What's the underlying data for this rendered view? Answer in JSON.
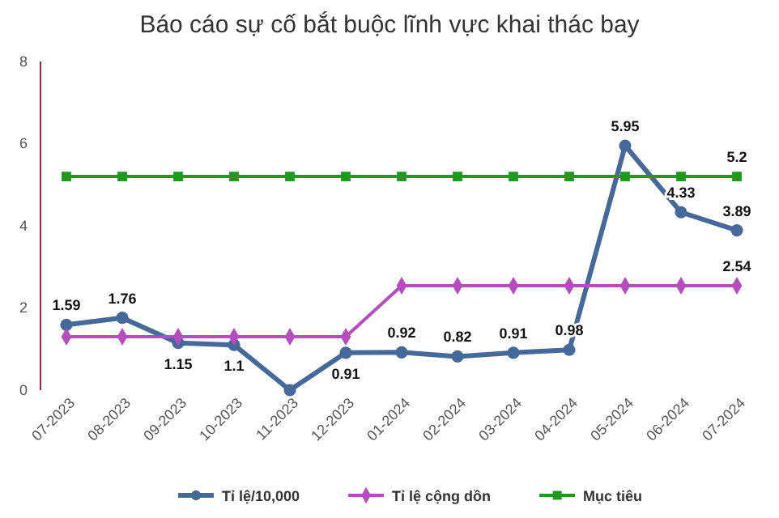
{
  "chart_data": {
    "type": "line",
    "title": "Báo cáo sự cố bắt buộc lĩnh vực khai thác bay",
    "categories": [
      "07-2023",
      "08-2023",
      "09-2023",
      "10-2023",
      "11-2023",
      "12-2023",
      "01-2024",
      "02-2024",
      "03-2024",
      "04-2024",
      "05-2024",
      "06-2024",
      "07-2024"
    ],
    "series": [
      {
        "name": "Tỉ lệ/10,000",
        "color": "#46699c",
        "marker": "circle",
        "values": [
          1.59,
          1.76,
          1.15,
          1.1,
          0,
          0.91,
          0.92,
          0.82,
          0.91,
          0.98,
          5.95,
          4.33,
          3.89
        ],
        "value_labels": [
          "1.59",
          "1.76",
          "1.15",
          "1.1",
          null,
          "0.91",
          "0.92",
          "0.82",
          "0.91",
          "0.98",
          "5.95",
          "4.33",
          "3.89"
        ]
      },
      {
        "name": "Tỉ lệ cộng dồn",
        "color": "#b64cc0",
        "marker": "diamond",
        "values": [
          1.3,
          1.3,
          1.3,
          1.3,
          1.3,
          1.3,
          2.54,
          2.54,
          2.54,
          2.54,
          2.54,
          2.54,
          2.54
        ],
        "value_labels": [
          null,
          null,
          null,
          null,
          null,
          null,
          null,
          null,
          null,
          null,
          null,
          null,
          "2.54"
        ]
      },
      {
        "name": "Mục tiêu",
        "color": "#1e9a1e",
        "marker": "square",
        "values": [
          5.2,
          5.2,
          5.2,
          5.2,
          5.2,
          5.2,
          5.2,
          5.2,
          5.2,
          5.2,
          5.2,
          5.2,
          5.2
        ],
        "value_labels": [
          null,
          null,
          null,
          null,
          null,
          null,
          null,
          null,
          null,
          null,
          null,
          null,
          "5.2"
        ]
      }
    ],
    "ylim": [
      0,
      8
    ],
    "yticks": [
      0,
      2,
      4,
      6,
      8
    ],
    "grid": false,
    "legend": "bottom"
  }
}
